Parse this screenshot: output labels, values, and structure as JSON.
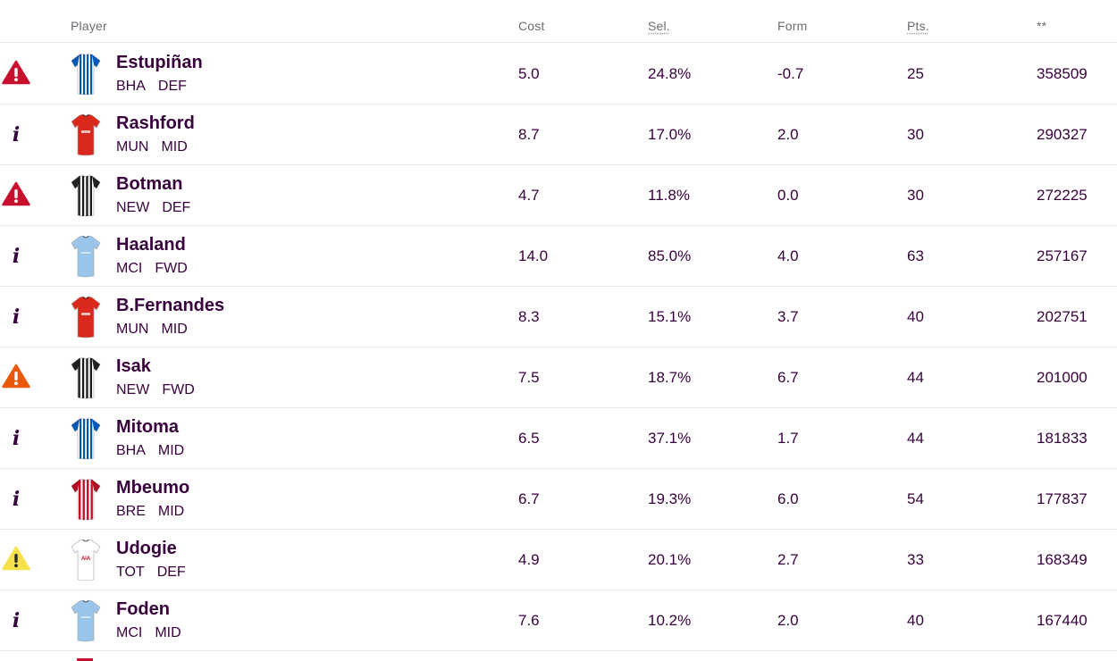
{
  "header": {
    "player": "Player",
    "cost": "Cost",
    "sel": "Sel.",
    "form": "Form",
    "pts": "Pts.",
    "stat": "**"
  },
  "colors": {
    "text": "#37003c",
    "alert_red": "#c8102e",
    "alert_orange": "#e8590c",
    "alert_yellow": "#f7e24b"
  },
  "players": [
    {
      "name": "Estupiñan",
      "team": "BHA",
      "pos": "DEF",
      "cost": "5.0",
      "sel": "24.8%",
      "form": "-0.7",
      "pts": "25",
      "stat": "358509",
      "status": "alert-red",
      "kit": "bha"
    },
    {
      "name": "Rashford",
      "team": "MUN",
      "pos": "MID",
      "cost": "8.7",
      "sel": "17.0%",
      "form": "2.0",
      "pts": "30",
      "stat": "290327",
      "status": "info",
      "kit": "mun"
    },
    {
      "name": "Botman",
      "team": "NEW",
      "pos": "DEF",
      "cost": "4.7",
      "sel": "11.8%",
      "form": "0.0",
      "pts": "30",
      "stat": "272225",
      "status": "alert-red",
      "kit": "new"
    },
    {
      "name": "Haaland",
      "team": "MCI",
      "pos": "FWD",
      "cost": "14.0",
      "sel": "85.0%",
      "form": "4.0",
      "pts": "63",
      "stat": "257167",
      "status": "info",
      "kit": "mci"
    },
    {
      "name": "B.Fernandes",
      "team": "MUN",
      "pos": "MID",
      "cost": "8.3",
      "sel": "15.1%",
      "form": "3.7",
      "pts": "40",
      "stat": "202751",
      "status": "info",
      "kit": "mun"
    },
    {
      "name": "Isak",
      "team": "NEW",
      "pos": "FWD",
      "cost": "7.5",
      "sel": "18.7%",
      "form": "6.7",
      "pts": "44",
      "stat": "201000",
      "status": "alert-orange",
      "kit": "new"
    },
    {
      "name": "Mitoma",
      "team": "BHA",
      "pos": "MID",
      "cost": "6.5",
      "sel": "37.1%",
      "form": "1.7",
      "pts": "44",
      "stat": "181833",
      "status": "info",
      "kit": "bha"
    },
    {
      "name": "Mbeumo",
      "team": "BRE",
      "pos": "MID",
      "cost": "6.7",
      "sel": "19.3%",
      "form": "6.0",
      "pts": "54",
      "stat": "177837",
      "status": "info",
      "kit": "bre"
    },
    {
      "name": "Udogie",
      "team": "TOT",
      "pos": "DEF",
      "cost": "4.9",
      "sel": "20.1%",
      "form": "2.7",
      "pts": "33",
      "stat": "168349",
      "status": "alert-yellow",
      "kit": "tot"
    },
    {
      "name": "Foden",
      "team": "MCI",
      "pos": "MID",
      "cost": "7.6",
      "sel": "10.2%",
      "form": "2.0",
      "pts": "40",
      "stat": "167440",
      "status": "info",
      "kit": "mci"
    }
  ]
}
